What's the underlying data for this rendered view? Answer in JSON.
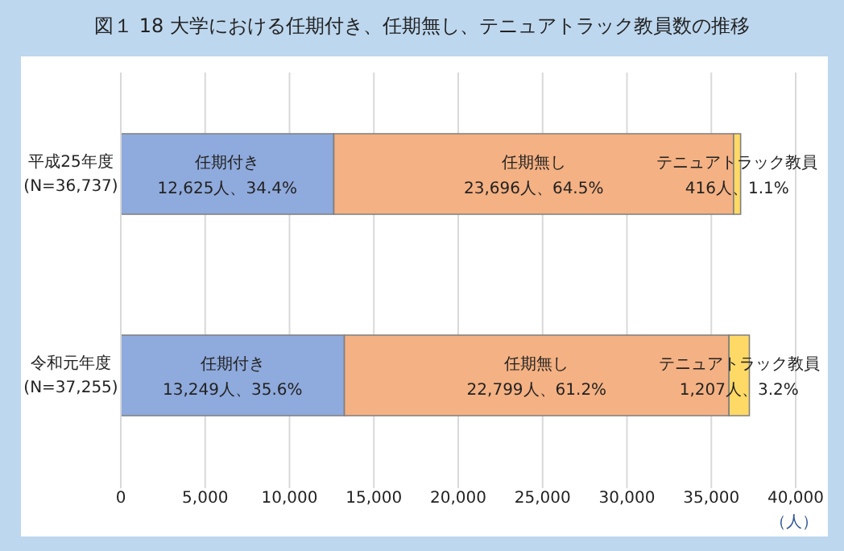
{
  "chart_data": {
    "type": "bar",
    "orientation": "horizontal",
    "stacked": true,
    "title": "図１ 18 大学における任期付き、任期無し、テニュアトラック教員数の推移",
    "xlabel": "（人）",
    "categories": [
      "平成25年度\n(N=36,737)",
      "令和元年度\n(N=37,255)"
    ],
    "series": [
      {
        "name": "任期付き",
        "color": "#8faadc",
        "values": [
          12625,
          13249
        ],
        "value_labels": [
          "12,625人、34.4%",
          "13,249人、35.6%"
        ]
      },
      {
        "name": "任期無し",
        "color": "#f4b183",
        "values": [
          23696,
          22799
        ],
        "value_labels": [
          "23,696人、64.5%",
          "22,799人、61.2%"
        ]
      },
      {
        "name": "テニュアトラック教員",
        "color": "#ffd966",
        "values": [
          416,
          1207
        ],
        "value_labels": [
          "416人、1.1%",
          "1,207人、3.2%"
        ]
      }
    ],
    "xlim": [
      0,
      40000
    ],
    "xticks": [
      0,
      {
        "value": 5000,
        "label": "5,000"
      },
      {
        "value": 10000,
        "label": "10,000"
      },
      {
        "value": 15000,
        "label": "15,000"
      },
      {
        "value": 20000,
        "label": "20,000"
      },
      {
        "value": 25000,
        "label": "25,000"
      },
      {
        "value": 30000,
        "label": "30,000"
      },
      {
        "value": 35000,
        "label": "35,000"
      },
      {
        "value": 40000,
        "label": "40,000"
      }
    ],
    "grid": "x"
  }
}
